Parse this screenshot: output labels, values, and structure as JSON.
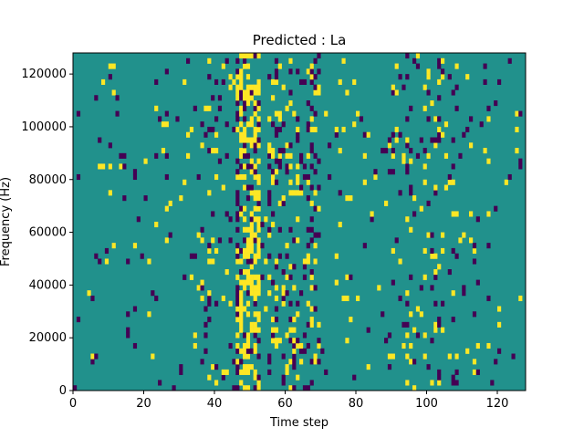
{
  "chart_data": {
    "type": "heatmap",
    "title": "Predicted : La",
    "xlabel": "Time step",
    "ylabel": "Frequency (Hz)",
    "xlim": [
      0,
      128
    ],
    "ylim": [
      0,
      128000
    ],
    "x_ticks": [
      0,
      20,
      40,
      60,
      80,
      100,
      120
    ],
    "y_ticks": [
      0,
      20000,
      40000,
      60000,
      80000,
      100000,
      120000
    ],
    "grid": false,
    "legend": "none",
    "colormap": "viridis",
    "value_levels": [
      -1,
      0,
      1
    ],
    "colors": {
      "low": "#440154",
      "mid": "#21918c",
      "high": "#fde725"
    },
    "n_time_steps": 128,
    "n_freq_bins": 64,
    "freq_bin_width_hz": 2000,
    "background_level": 0,
    "cells": [
      [
        3,
        1
      ],
      [
        3,
        6
      ],
      [
        3,
        9
      ],
      [
        4,
        5
      ],
      [
        4,
        11
      ],
      [
        5,
        8
      ],
      [
        6,
        3
      ],
      [
        7,
        10
      ],
      [
        8,
        2
      ],
      [
        9,
        12
      ],
      [
        10,
        4
      ],
      [
        10,
        7
      ],
      [
        11,
        9
      ],
      [
        12,
        14
      ],
      [
        13,
        6
      ],
      [
        14,
        10
      ],
      [
        15,
        1
      ],
      [
        16,
        5
      ],
      [
        17,
        8
      ],
      [
        18,
        3
      ],
      [
        19,
        12
      ],
      [
        20,
        7
      ],
      [
        21,
        2
      ],
      [
        22,
        9
      ],
      [
        23,
        4
      ],
      [
        24,
        11
      ],
      [
        25,
        6
      ],
      [
        26,
        1
      ],
      [
        27,
        8
      ],
      [
        28,
        3
      ],
      [
        29,
        10
      ],
      [
        30,
        5
      ],
      [
        31,
        12
      ],
      [
        32,
        7
      ],
      [
        33,
        2
      ],
      [
        34,
        9
      ],
      [
        35,
        4
      ],
      [
        36,
        11
      ],
      [
        37,
        6
      ],
      [
        38,
        1
      ],
      [
        39,
        8
      ],
      [
        40,
        3
      ],
      [
        41,
        10
      ],
      [
        42,
        5
      ],
      [
        43,
        12
      ],
      [
        44,
        7
      ],
      [
        45,
        2
      ],
      [
        46,
        9
      ],
      [
        47,
        4
      ],
      [
        48,
        11
      ],
      [
        49,
        6
      ],
      [
        50,
        1
      ],
      [
        51,
        8
      ],
      [
        52,
        3
      ],
      [
        53,
        10
      ],
      [
        54,
        5
      ],
      [
        55,
        12
      ],
      [
        56,
        7
      ],
      [
        57,
        2
      ],
      [
        58,
        9
      ],
      [
        59,
        4
      ],
      [
        60,
        11
      ],
      [
        61,
        6
      ],
      [
        62,
        1
      ],
      [
        63,
        8
      ]
    ]
  }
}
